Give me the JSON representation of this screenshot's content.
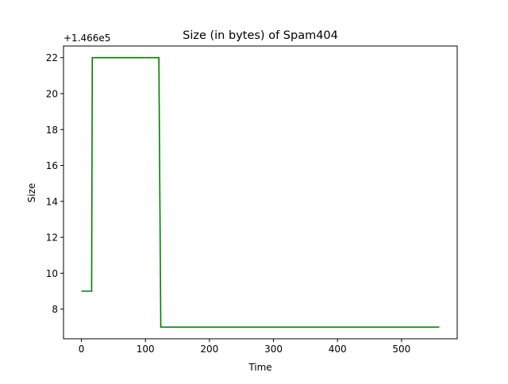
{
  "chart_data": {
    "type": "line",
    "title": "Size (in bytes) of Spam404",
    "xlabel": "Time",
    "ylabel": "Size",
    "offset_label": "+1.466e5",
    "xlim": [
      -27.95,
      586.95
    ],
    "ylim": [
      6.35,
      22.65
    ],
    "xticks": [
      0,
      100,
      200,
      300,
      400,
      500
    ],
    "yticks": [
      8,
      10,
      12,
      14,
      16,
      18,
      20,
      22
    ],
    "grid": false,
    "series": [
      {
        "color": "#008000",
        "x": [
          0,
          16,
          17,
          121,
          124,
          559
        ],
        "y": [
          9,
          9,
          22,
          22,
          7,
          7
        ]
      }
    ]
  }
}
